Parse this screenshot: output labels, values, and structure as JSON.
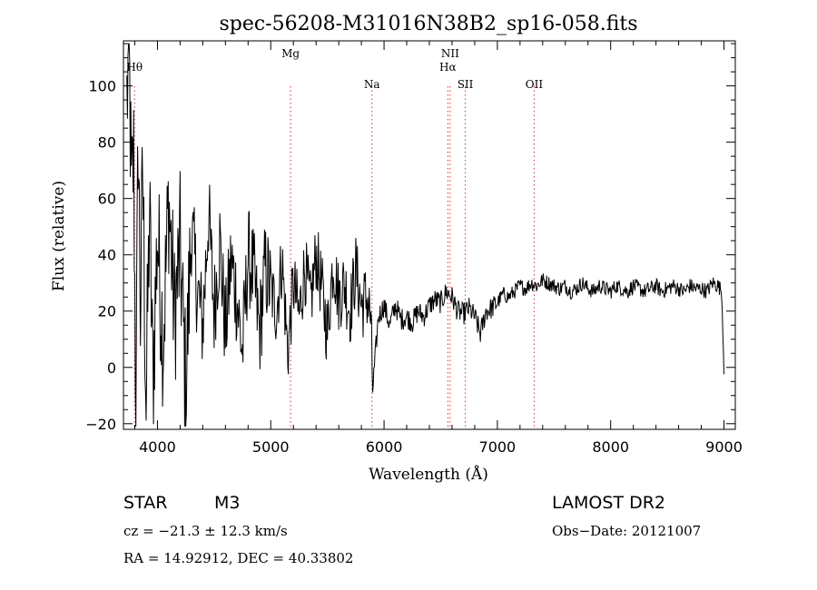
{
  "chart_data": {
    "type": "line",
    "title": "spec-56208-M31016N38B2_sp16-058.fits",
    "xlabel": "Wavelength (Å)",
    "ylabel": "Flux (relative)",
    "xlim": [
      3700,
      9100
    ],
    "ylim": [
      -22,
      116
    ],
    "xticks": [
      4000,
      5000,
      6000,
      7000,
      8000,
      9000
    ],
    "yticks": [
      -20,
      0,
      20,
      40,
      60,
      80,
      100
    ],
    "xtick_labels": [
      "4000",
      "5000",
      "6000",
      "7000",
      "8000",
      "9000"
    ],
    "ytick_labels": [
      "−20",
      "0",
      "20",
      "40",
      "60",
      "80",
      "100"
    ],
    "spectral_lines": [
      {
        "label": "Hθ",
        "wavelength": 3798,
        "row": 2
      },
      {
        "label": "Mg",
        "wavelength": 5175,
        "row": 1
      },
      {
        "label": "Na",
        "wavelength": 5893,
        "row": 3
      },
      {
        "label": "NII",
        "wavelength": 6583,
        "row": 1
      },
      {
        "label": "Hα",
        "wavelength": 6563,
        "row": 2
      },
      {
        "label": "SII",
        "wavelength": 6717,
        "row": 3
      },
      {
        "label": "OII",
        "wavelength": 7325,
        "row": 3
      }
    ],
    "series": [
      {
        "name": "flux",
        "x": [
          3730,
          3750,
          3770,
          3790,
          3810,
          3830,
          3850,
          3870,
          3900,
          3930,
          3960,
          4000,
          4050,
          4100,
          4150,
          4200,
          4250,
          4300,
          4350,
          4400,
          4450,
          4500,
          4550,
          4600,
          4650,
          4700,
          4750,
          4800,
          4850,
          4900,
          4950,
          5000,
          5050,
          5100,
          5150,
          5200,
          5250,
          5300,
          5350,
          5400,
          5450,
          5500,
          5550,
          5600,
          5650,
          5700,
          5750,
          5800,
          5850,
          5880,
          5900,
          5950,
          6000,
          6050,
          6100,
          6150,
          6200,
          6250,
          6300,
          6350,
          6400,
          6450,
          6500,
          6550,
          6600,
          6650,
          6700,
          6750,
          6800,
          6850,
          6900,
          6950,
          7000,
          7050,
          7100,
          7150,
          7200,
          7250,
          7300,
          7350,
          7400,
          7450,
          7500,
          7550,
          7600,
          7650,
          7700,
          7750,
          7800,
          7850,
          7900,
          7950,
          8000,
          8050,
          8100,
          8150,
          8200,
          8250,
          8300,
          8350,
          8400,
          8450,
          8500,
          8550,
          8600,
          8650,
          8700,
          8750,
          8800,
          8850,
          8900,
          8950,
          8980,
          9000
        ],
        "values": [
          95,
          112,
          60,
          75,
          -18,
          85,
          20,
          70,
          -12,
          55,
          -5,
          48,
          10,
          60,
          18,
          42,
          -8,
          50,
          28,
          15,
          55,
          20,
          45,
          12,
          38,
          25,
          5,
          40,
          32,
          12,
          35,
          28,
          20,
          38,
          5,
          30,
          18,
          36,
          22,
          40,
          28,
          12,
          38,
          25,
          30,
          20,
          35,
          22,
          25,
          18,
          -8,
          18,
          22,
          15,
          22,
          17,
          18,
          16,
          20,
          18,
          22,
          24,
          23,
          27,
          25,
          20,
          19,
          21,
          18,
          12,
          20,
          21,
          23,
          26,
          25,
          27,
          29,
          28,
          30,
          29,
          31,
          30,
          29,
          28,
          29,
          27,
          28,
          30,
          28,
          27,
          29,
          28,
          27,
          29,
          28,
          27,
          29,
          28,
          27,
          28,
          29,
          27,
          28,
          29,
          28,
          27,
          29,
          28,
          28,
          27,
          30,
          29,
          27,
          0
        ]
      }
    ]
  },
  "footer": {
    "object_type": "STAR",
    "subclass": "M3",
    "redshift": "cz = −21.3 ± 12.3 km/s",
    "coords": "RA =  14.92912, DEC =  40.33802",
    "survey": "LAMOST DR2",
    "obs_date": "Obs−Date: 20121007"
  }
}
